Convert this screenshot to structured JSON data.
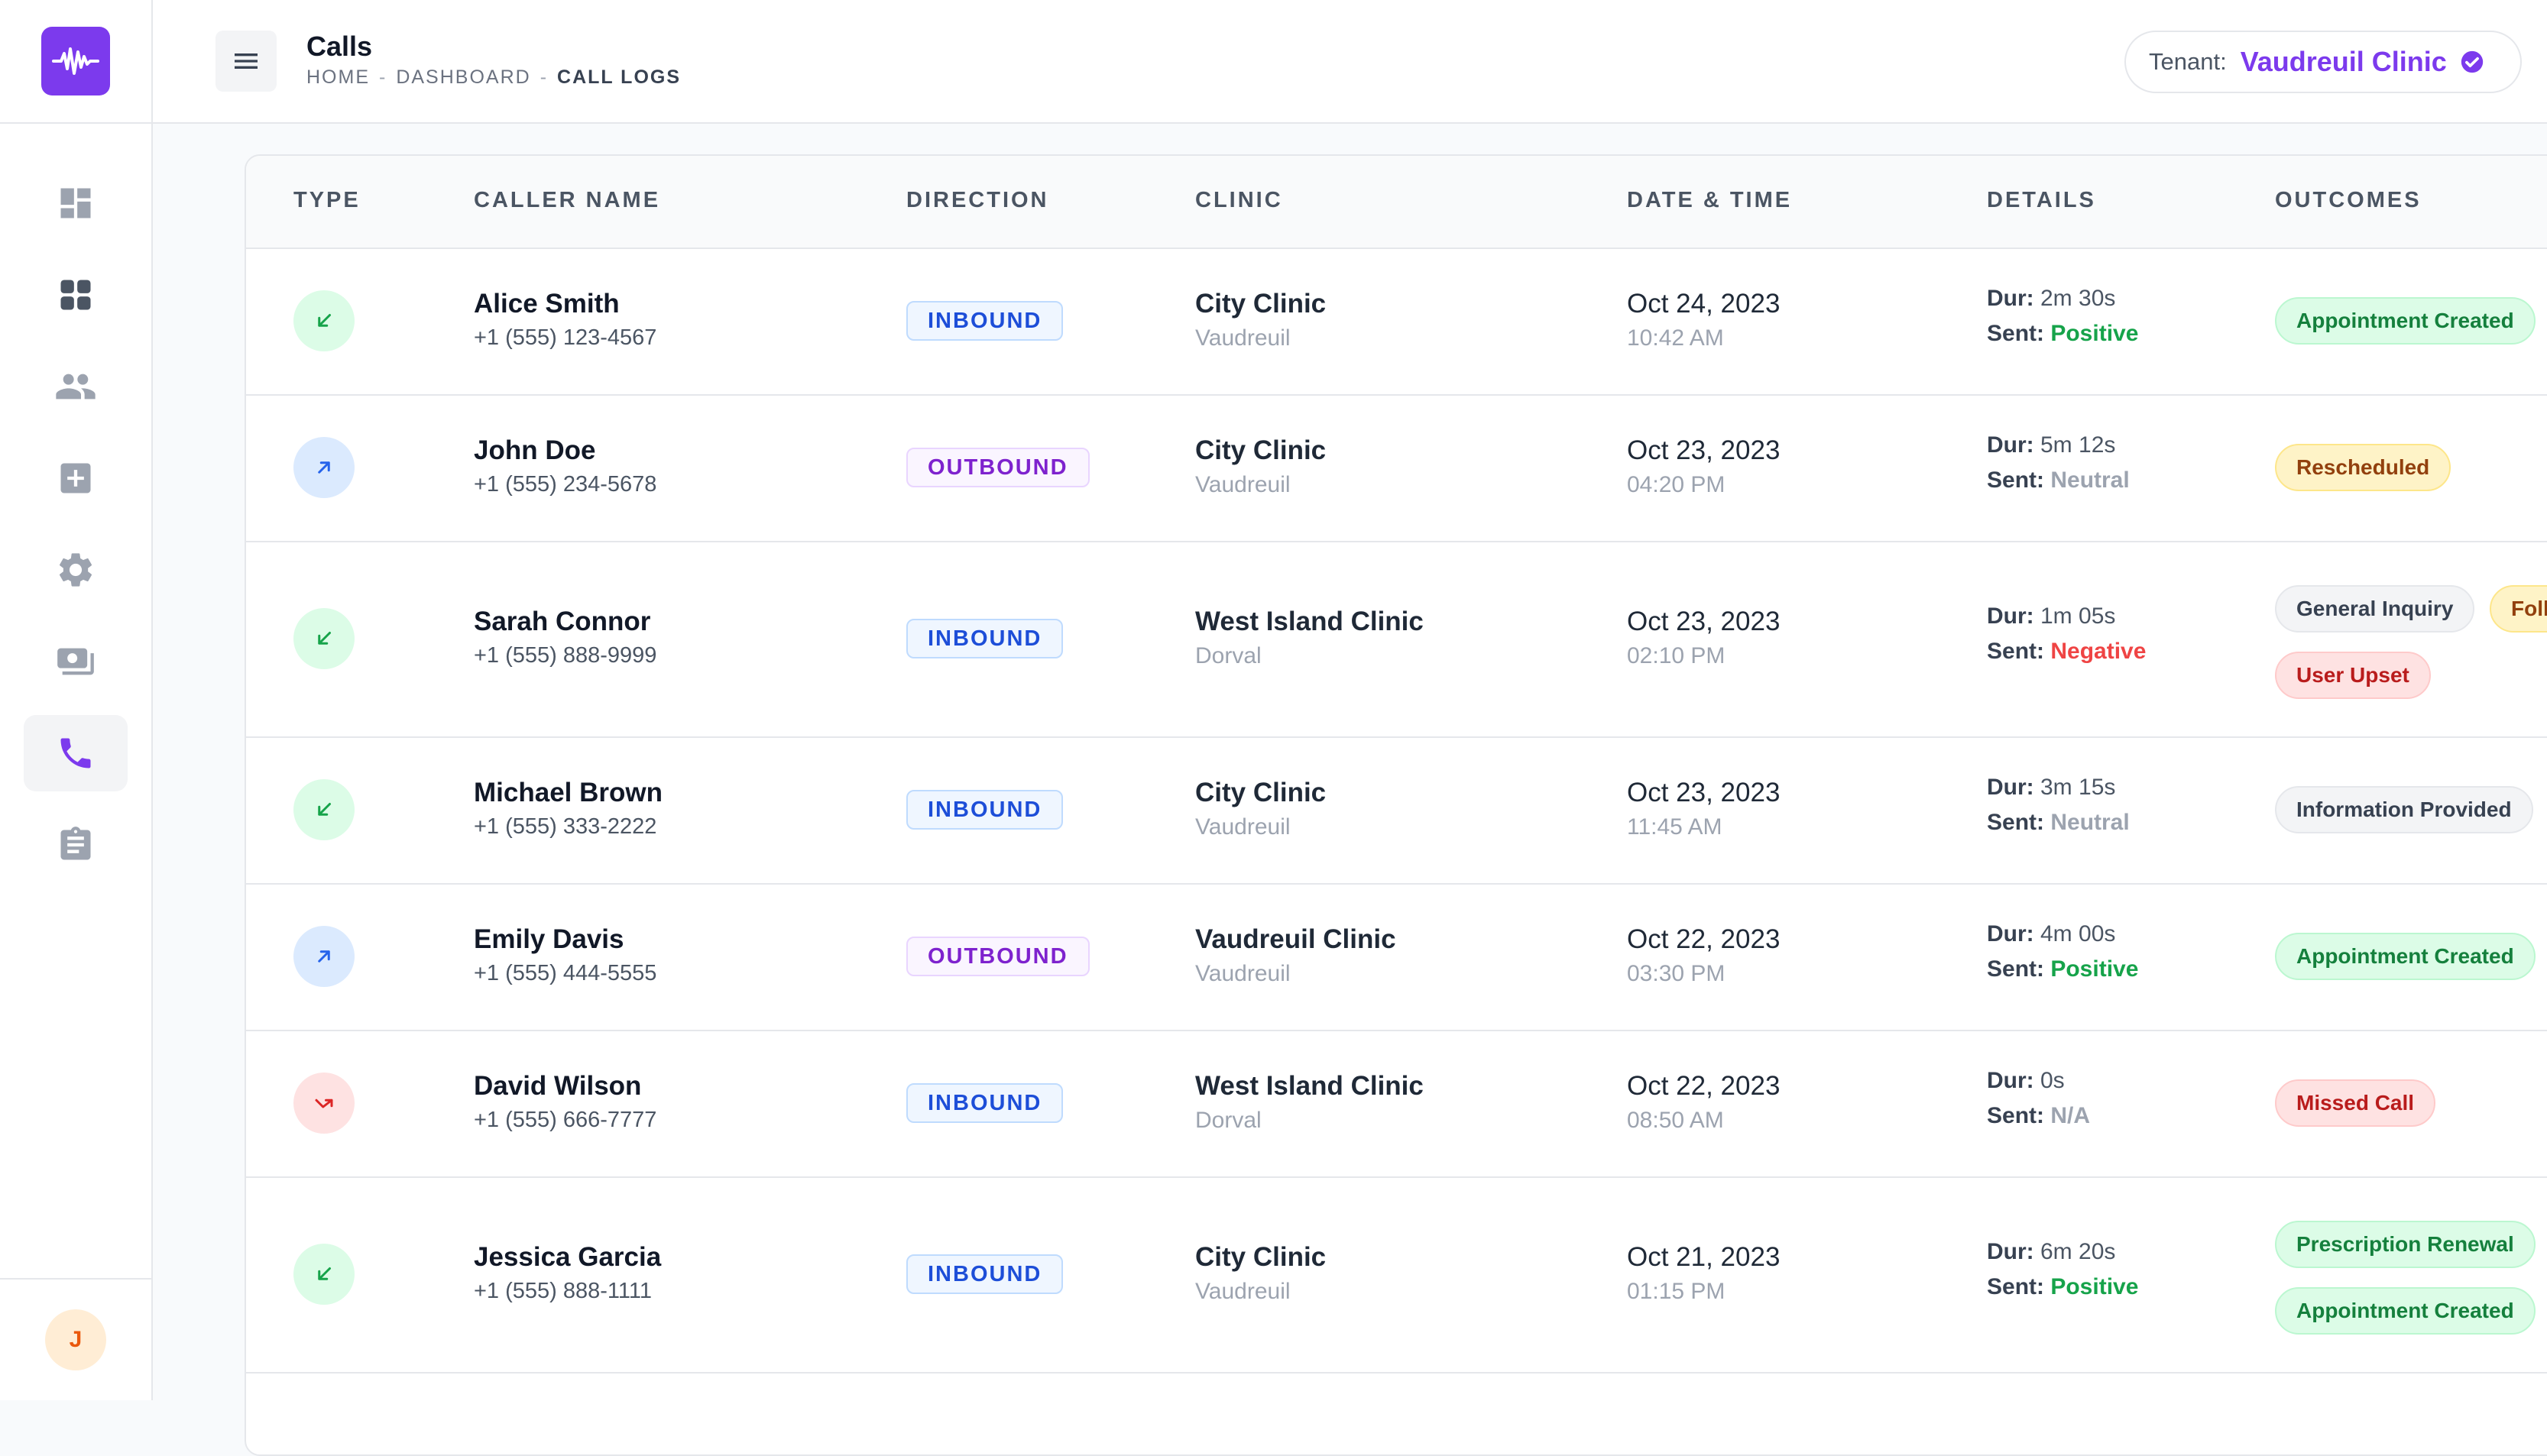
{
  "header": {
    "title": "Calls",
    "breadcrumb": [
      "HOME",
      "DASHBOARD",
      "CALL LOGS"
    ],
    "separator": "-",
    "tenant_label": "Tenant:",
    "tenant_value": "Vaudreuil Clinic"
  },
  "sidebar": {
    "items": [
      {
        "icon": "dashboard-icon"
      },
      {
        "icon": "grid-icon"
      },
      {
        "icon": "users-icon"
      },
      {
        "icon": "medical-plus-icon"
      },
      {
        "icon": "gear-icon"
      },
      {
        "icon": "billing-icon"
      },
      {
        "icon": "phone-icon",
        "active": true
      },
      {
        "icon": "clipboard-icon"
      }
    ],
    "avatar_initial": "J"
  },
  "table": {
    "columns": [
      "TYPE",
      "CALLER NAME",
      "DIRECTION",
      "CLINIC",
      "DATE & TIME",
      "DETAILS",
      "OUTCOMES"
    ],
    "dur_label": "Dur:",
    "sent_label": "Sent:",
    "rows": [
      {
        "type": "inbound",
        "name": "Alice Smith",
        "phone": "+1 (555) 123-4567",
        "direction": "INBOUND",
        "clinic": "City Clinic",
        "city": "Vaudreuil",
        "date": "Oct 24, 2023",
        "time": "10:42 AM",
        "duration": "2m 30s",
        "sentiment": "Positive",
        "outcomes": [
          "Appointment Created"
        ]
      },
      {
        "type": "outbound",
        "name": "John Doe",
        "phone": "+1 (555) 234-5678",
        "direction": "OUTBOUND",
        "clinic": "City Clinic",
        "city": "Vaudreuil",
        "date": "Oct 23, 2023",
        "time": "04:20 PM",
        "duration": "5m 12s",
        "sentiment": "Neutral",
        "outcomes": [
          "Rescheduled"
        ]
      },
      {
        "type": "inbound",
        "name": "Sarah Connor",
        "phone": "+1 (555) 888-9999",
        "direction": "INBOUND",
        "clinic": "West Island Clinic",
        "city": "Dorval",
        "date": "Oct 23, 2023",
        "time": "02:10 PM",
        "duration": "1m 05s",
        "sentiment": "Negative",
        "outcomes": [
          "General Inquiry",
          "Follow-up Needed",
          "User Upset"
        ]
      },
      {
        "type": "inbound",
        "name": "Michael Brown",
        "phone": "+1 (555) 333-2222",
        "direction": "INBOUND",
        "clinic": "City Clinic",
        "city": "Vaudreuil",
        "date": "Oct 23, 2023",
        "time": "11:45 AM",
        "duration": "3m 15s",
        "sentiment": "Neutral",
        "outcomes": [
          "Information Provided"
        ]
      },
      {
        "type": "outbound",
        "name": "Emily Davis",
        "phone": "+1 (555) 444-5555",
        "direction": "OUTBOUND",
        "clinic": "Vaudreuil Clinic",
        "city": "Vaudreuil",
        "date": "Oct 22, 2023",
        "time": "03:30 PM",
        "duration": "4m 00s",
        "sentiment": "Positive",
        "outcomes": [
          "Appointment Created"
        ]
      },
      {
        "type": "missed",
        "name": "David Wilson",
        "phone": "+1 (555) 666-7777",
        "direction": "INBOUND",
        "clinic": "West Island Clinic",
        "city": "Dorval",
        "date": "Oct 22, 2023",
        "time": "08:50 AM",
        "duration": "0s",
        "sentiment": "N/A",
        "outcomes": [
          "Missed Call"
        ]
      },
      {
        "type": "inbound",
        "name": "Jessica Garcia",
        "phone": "+1 (555) 888-1111",
        "direction": "INBOUND",
        "clinic": "City Clinic",
        "city": "Vaudreuil",
        "date": "Oct 21, 2023",
        "time": "01:15 PM",
        "duration": "6m 20s",
        "sentiment": "Positive",
        "outcomes": [
          "Prescription Renewal",
          "Appointment Created"
        ]
      }
    ]
  },
  "colors": {
    "brand": "#7c3aed",
    "positive": "#16a34a",
    "negative": "#ef4444",
    "neutral": "#9ca3af",
    "inbound": "#1d4ed8",
    "outbound": "#7e22ce"
  }
}
